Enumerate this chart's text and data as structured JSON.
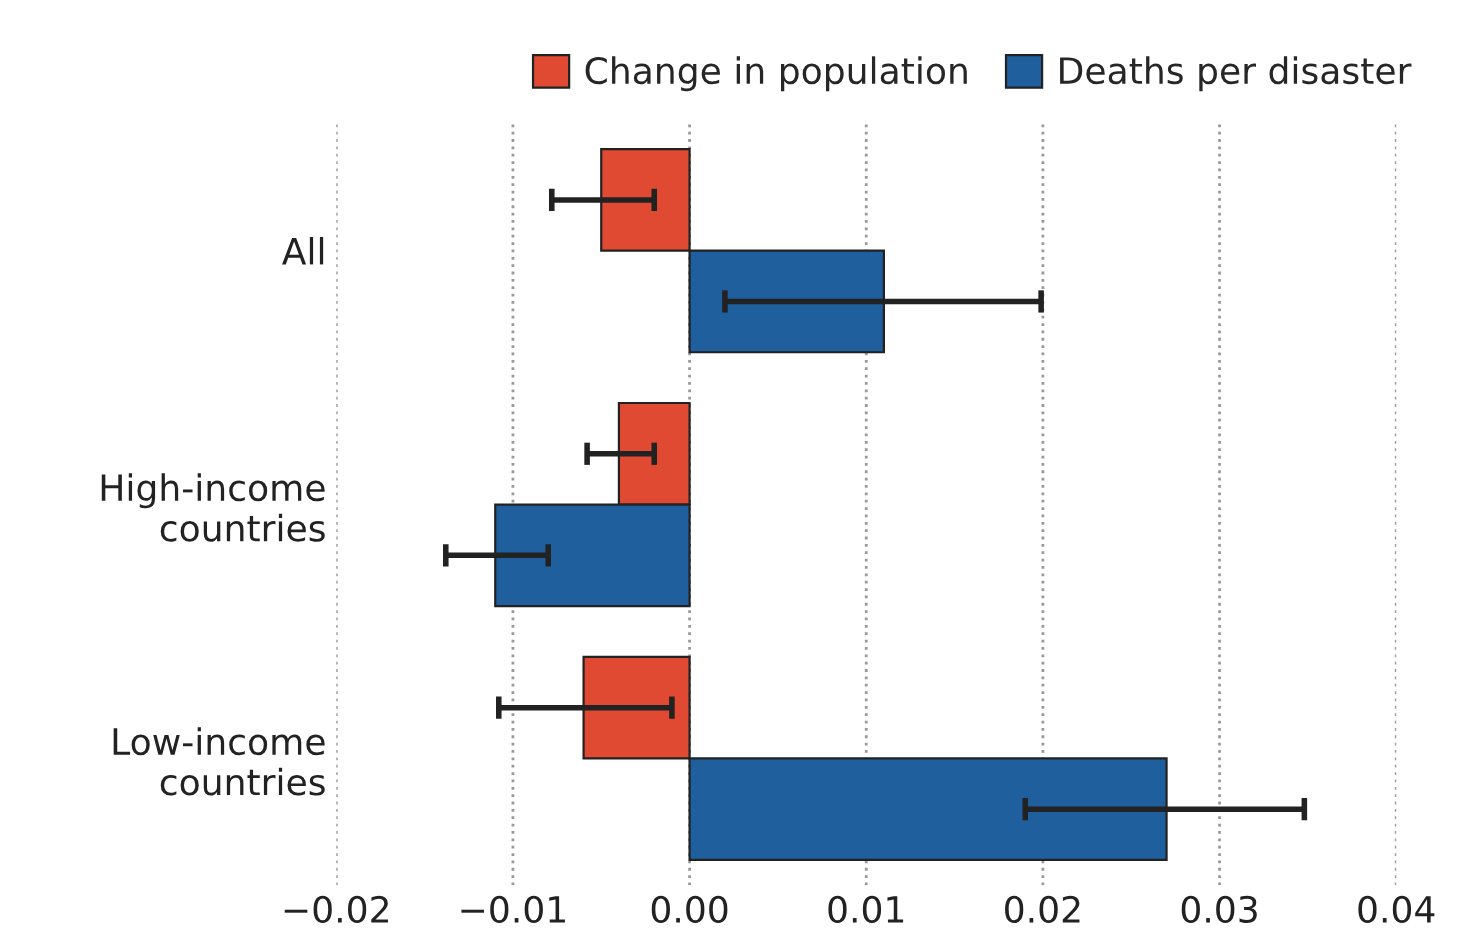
{
  "chart_data": {
    "type": "bar",
    "orientation": "horizontal",
    "categories": [
      "All",
      "High-income\ncountries",
      "Low-income\ncountries"
    ],
    "series": [
      {
        "name": "Change in population",
        "color": "#e04a33",
        "values": [
          -0.005,
          -0.004,
          -0.006
        ],
        "errors": [
          [
            -0.0078,
            -0.002
          ],
          [
            -0.0058,
            -0.002
          ],
          [
            -0.0108,
            -0.001
          ]
        ]
      },
      {
        "name": "Deaths per disaster",
        "color": "#1f5f9e",
        "values": [
          0.011,
          -0.011,
          0.027
        ],
        "errors": [
          [
            0.002,
            0.0199
          ],
          [
            -0.0138,
            -0.008
          ],
          [
            0.019,
            0.0348
          ]
        ]
      }
    ],
    "xlim": [
      -0.02,
      0.04
    ],
    "xticks": [
      {
        "value": -0.02,
        "label": "−0.02"
      },
      {
        "value": -0.01,
        "label": "−0.01"
      },
      {
        "value": 0.0,
        "label": "0.00"
      },
      {
        "value": 0.01,
        "label": "0.01"
      },
      {
        "value": 0.02,
        "label": "0.02"
      },
      {
        "value": 0.03,
        "label": "0.03"
      },
      {
        "value": 0.04,
        "label": "0.04"
      }
    ],
    "grid": "x",
    "legend": "top"
  }
}
